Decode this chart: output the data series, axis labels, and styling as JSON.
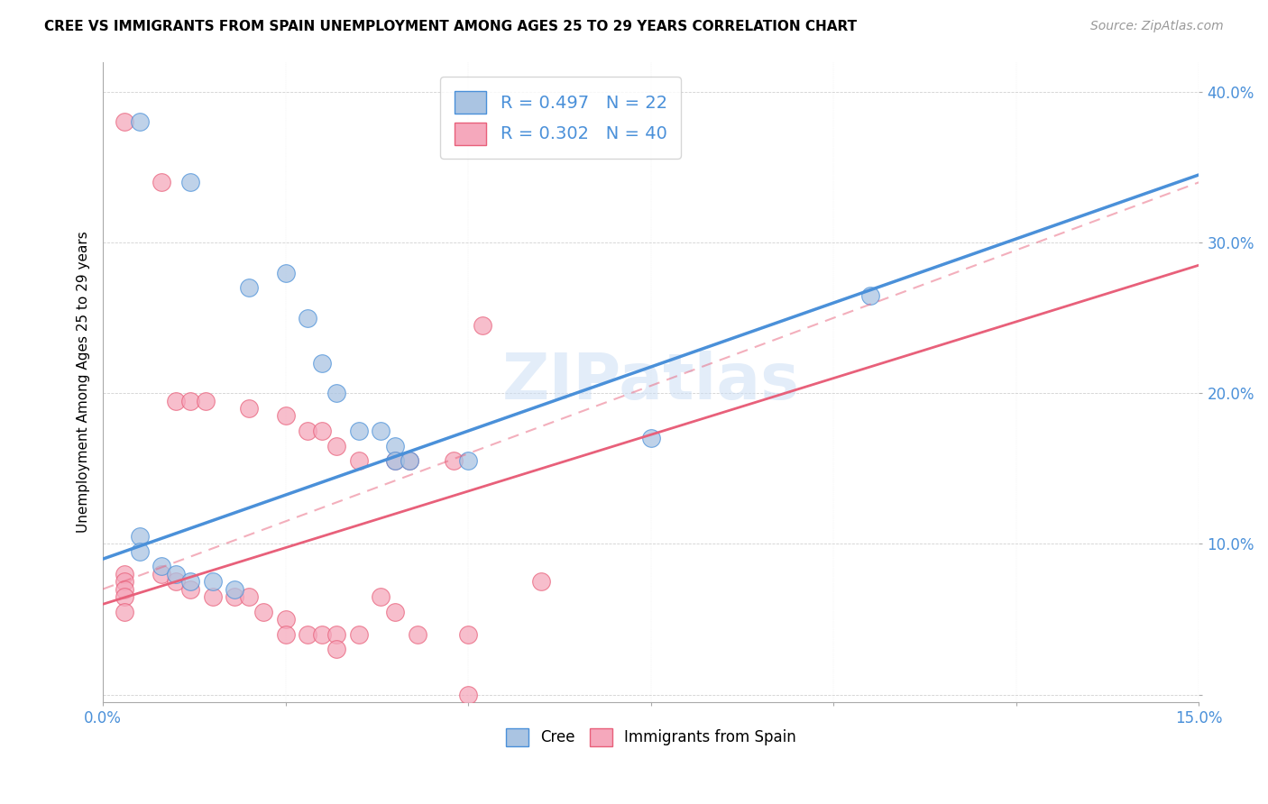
{
  "title": "CREE VS IMMIGRANTS FROM SPAIN UNEMPLOYMENT AMONG AGES 25 TO 29 YEARS CORRELATION CHART",
  "source": "Source: ZipAtlas.com",
  "xlabel": "",
  "ylabel": "Unemployment Among Ages 25 to 29 years",
  "xlim": [
    0.0,
    0.15
  ],
  "ylim": [
    -0.005,
    0.42
  ],
  "xticks": [
    0.0,
    0.025,
    0.05,
    0.075,
    0.1,
    0.125,
    0.15
  ],
  "xtick_labels": [
    "0.0%",
    "",
    "",
    "",
    "",
    "",
    "15.0%"
  ],
  "yticks": [
    0.0,
    0.1,
    0.2,
    0.3,
    0.4
  ],
  "ytick_labels": [
    "",
    "10.0%",
    "20.0%",
    "30.0%",
    "40.0%"
  ],
  "legend_r_cree": "0.497",
  "legend_n_cree": "22",
  "legend_r_spain": "0.302",
  "legend_n_spain": "40",
  "cree_color": "#aac4e2",
  "spain_color": "#f5a8bc",
  "line_cree_color": "#4a90d9",
  "line_spain_color": "#e8607a",
  "watermark": "ZIPatlas",
  "cree_line": [
    0.0,
    0.09,
    0.15,
    0.345
  ],
  "spain_line": [
    0.0,
    0.06,
    0.15,
    0.285
  ],
  "spain_dash": [
    0.0,
    0.07,
    0.15,
    0.34
  ],
  "cree_points": [
    [
      0.005,
      0.38
    ],
    [
      0.012,
      0.34
    ],
    [
      0.02,
      0.27
    ],
    [
      0.025,
      0.28
    ],
    [
      0.028,
      0.25
    ],
    [
      0.03,
      0.22
    ],
    [
      0.032,
      0.2
    ],
    [
      0.035,
      0.175
    ],
    [
      0.038,
      0.175
    ],
    [
      0.04,
      0.165
    ],
    [
      0.04,
      0.155
    ],
    [
      0.042,
      0.155
    ],
    [
      0.005,
      0.105
    ],
    [
      0.005,
      0.095
    ],
    [
      0.008,
      0.085
    ],
    [
      0.01,
      0.08
    ],
    [
      0.012,
      0.075
    ],
    [
      0.015,
      0.075
    ],
    [
      0.018,
      0.07
    ],
    [
      0.05,
      0.155
    ],
    [
      0.075,
      0.17
    ],
    [
      0.105,
      0.265
    ]
  ],
  "spain_points": [
    [
      0.003,
      0.38
    ],
    [
      0.008,
      0.34
    ],
    [
      0.01,
      0.195
    ],
    [
      0.012,
      0.195
    ],
    [
      0.014,
      0.195
    ],
    [
      0.02,
      0.19
    ],
    [
      0.025,
      0.185
    ],
    [
      0.028,
      0.175
    ],
    [
      0.03,
      0.175
    ],
    [
      0.032,
      0.165
    ],
    [
      0.035,
      0.155
    ],
    [
      0.04,
      0.155
    ],
    [
      0.042,
      0.155
    ],
    [
      0.048,
      0.155
    ],
    [
      0.052,
      0.245
    ],
    [
      0.003,
      0.08
    ],
    [
      0.003,
      0.075
    ],
    [
      0.003,
      0.07
    ],
    [
      0.003,
      0.065
    ],
    [
      0.003,
      0.055
    ],
    [
      0.008,
      0.08
    ],
    [
      0.01,
      0.075
    ],
    [
      0.012,
      0.07
    ],
    [
      0.015,
      0.065
    ],
    [
      0.018,
      0.065
    ],
    [
      0.02,
      0.065
    ],
    [
      0.022,
      0.055
    ],
    [
      0.025,
      0.05
    ],
    [
      0.025,
      0.04
    ],
    [
      0.028,
      0.04
    ],
    [
      0.03,
      0.04
    ],
    [
      0.032,
      0.04
    ],
    [
      0.032,
      0.03
    ],
    [
      0.035,
      0.04
    ],
    [
      0.038,
      0.065
    ],
    [
      0.04,
      0.055
    ],
    [
      0.043,
      0.04
    ],
    [
      0.05,
      0.04
    ],
    [
      0.05,
      0.0
    ],
    [
      0.06,
      0.075
    ]
  ]
}
